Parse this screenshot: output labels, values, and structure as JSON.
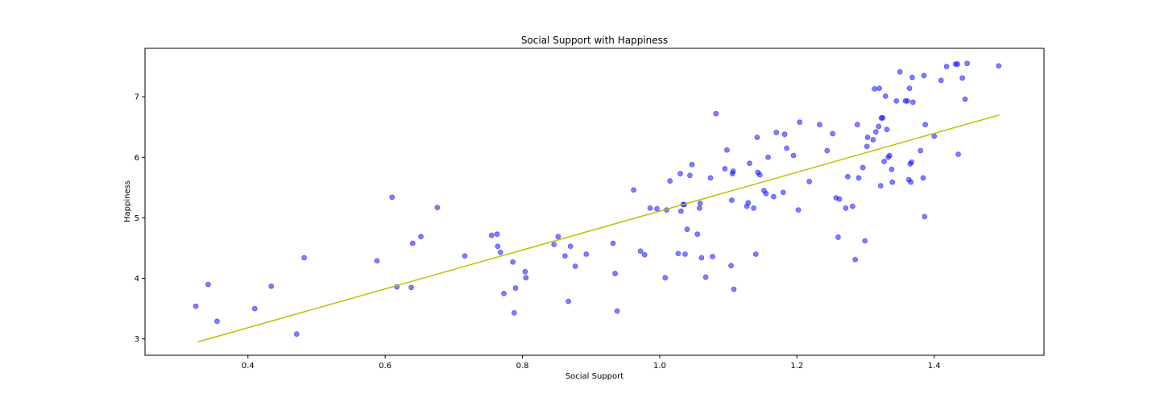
{
  "chart_data": {
    "type": "scatter",
    "title": "Social Support with Happiness",
    "xlabel": "Social Support",
    "ylabel": "Happiness",
    "xlim": [
      0.25,
      1.56
    ],
    "ylim": [
      2.73,
      7.8
    ],
    "xticks": [
      0.4,
      0.6,
      0.8,
      1.0,
      1.2,
      1.4
    ],
    "xtick_labels": [
      "0.4",
      "0.6",
      "0.8",
      "1.0",
      "1.2",
      "1.4"
    ],
    "yticks": [
      3,
      4,
      5,
      6,
      7
    ],
    "ytick_labels": [
      "3",
      "4",
      "5",
      "6",
      "7"
    ],
    "grid": false,
    "point_color": "#0000ff",
    "line_color": "#bfbf00",
    "fit_line": {
      "x": [
        0.327,
        1.495
      ],
      "y": [
        2.95,
        6.7
      ]
    },
    "points": [
      [
        0.324,
        3.54
      ],
      [
        0.342,
        3.9
      ],
      [
        0.355,
        3.29
      ],
      [
        0.41,
        3.5
      ],
      [
        0.434,
        3.87
      ],
      [
        0.471,
        3.08
      ],
      [
        0.482,
        4.34
      ],
      [
        0.588,
        4.29
      ],
      [
        0.61,
        5.34
      ],
      [
        0.617,
        3.86
      ],
      [
        0.638,
        3.85
      ],
      [
        0.64,
        4.58
      ],
      [
        0.652,
        4.69
      ],
      [
        0.676,
        5.17
      ],
      [
        0.716,
        4.37
      ],
      [
        0.755,
        4.71
      ],
      [
        0.763,
        4.73
      ],
      [
        0.764,
        4.53
      ],
      [
        0.768,
        4.43
      ],
      [
        0.773,
        3.75
      ],
      [
        0.786,
        4.27
      ],
      [
        0.788,
        3.43
      ],
      [
        0.79,
        3.84
      ],
      [
        0.804,
        4.11
      ],
      [
        0.805,
        4.01
      ],
      [
        0.846,
        4.56
      ],
      [
        0.852,
        4.69
      ],
      [
        0.862,
        4.37
      ],
      [
        0.867,
        3.62
      ],
      [
        0.87,
        4.53
      ],
      [
        0.877,
        4.2
      ],
      [
        0.893,
        4.4
      ],
      [
        0.932,
        4.58
      ],
      [
        0.935,
        4.08
      ],
      [
        0.938,
        3.46
      ],
      [
        0.962,
        5.46
      ],
      [
        0.972,
        4.45
      ],
      [
        0.978,
        4.39
      ],
      [
        0.986,
        5.16
      ],
      [
        0.996,
        5.15
      ],
      [
        1.008,
        4.01
      ],
      [
        1.01,
        5.13
      ],
      [
        1.015,
        5.61
      ],
      [
        1.027,
        4.41
      ],
      [
        1.03,
        5.73
      ],
      [
        1.031,
        5.11
      ],
      [
        1.034,
        5.22
      ],
      [
        1.036,
        5.22
      ],
      [
        1.037,
        4.4
      ],
      [
        1.04,
        4.81
      ],
      [
        1.044,
        5.7
      ],
      [
        1.047,
        5.88
      ],
      [
        1.055,
        4.73
      ],
      [
        1.058,
        5.16
      ],
      [
        1.059,
        5.24
      ],
      [
        1.061,
        4.34
      ],
      [
        1.067,
        4.02
      ],
      [
        1.074,
        5.66
      ],
      [
        1.077,
        4.36
      ],
      [
        1.082,
        6.72
      ],
      [
        1.095,
        5.81
      ],
      [
        1.098,
        6.12
      ],
      [
        1.104,
        4.21
      ],
      [
        1.105,
        5.29
      ],
      [
        1.106,
        5.73
      ],
      [
        1.107,
        5.77
      ],
      [
        1.108,
        3.82
      ],
      [
        1.127,
        5.19
      ],
      [
        1.129,
        5.25
      ],
      [
        1.131,
        5.9
      ],
      [
        1.137,
        5.16
      ],
      [
        1.14,
        4.4
      ],
      [
        1.142,
        6.33
      ],
      [
        1.143,
        5.75
      ],
      [
        1.146,
        5.71
      ],
      [
        1.152,
        5.45
      ],
      [
        1.155,
        5.4
      ],
      [
        1.158,
        6.0
      ],
      [
        1.166,
        5.35
      ],
      [
        1.17,
        6.41
      ],
      [
        1.18,
        5.42
      ],
      [
        1.182,
        6.38
      ],
      [
        1.185,
        6.15
      ],
      [
        1.195,
        6.03
      ],
      [
        1.202,
        5.13
      ],
      [
        1.204,
        6.58
      ],
      [
        1.218,
        5.6
      ],
      [
        1.233,
        6.54
      ],
      [
        1.244,
        6.11
      ],
      [
        1.252,
        6.39
      ],
      [
        1.257,
        5.33
      ],
      [
        1.26,
        4.68
      ],
      [
        1.262,
        5.31
      ],
      [
        1.271,
        5.16
      ],
      [
        1.274,
        5.68
      ],
      [
        1.281,
        5.19
      ],
      [
        1.285,
        4.31
      ],
      [
        1.288,
        6.54
      ],
      [
        1.29,
        5.66
      ],
      [
        1.296,
        5.83
      ],
      [
        1.299,
        4.62
      ],
      [
        1.302,
        6.18
      ],
      [
        1.303,
        6.33
      ],
      [
        1.311,
        6.29
      ],
      [
        1.313,
        7.13
      ],
      [
        1.315,
        6.42
      ],
      [
        1.319,
        6.51
      ],
      [
        1.32,
        7.14
      ],
      [
        1.322,
        5.53
      ],
      [
        1.323,
        6.65
      ],
      [
        1.325,
        6.65
      ],
      [
        1.327,
        5.93
      ],
      [
        1.329,
        7.01
      ],
      [
        1.331,
        6.46
      ],
      [
        1.333,
        6.0
      ],
      [
        1.335,
        6.03
      ],
      [
        1.338,
        5.8
      ],
      [
        1.339,
        5.59
      ],
      [
        1.345,
        6.93
      ],
      [
        1.35,
        7.41
      ],
      [
        1.358,
        6.93
      ],
      [
        1.361,
        6.93
      ],
      [
        1.363,
        5.63
      ],
      [
        1.364,
        7.14
      ],
      [
        1.365,
        5.89
      ],
      [
        1.366,
        5.59
      ],
      [
        1.367,
        5.92
      ],
      [
        1.368,
        7.32
      ],
      [
        1.369,
        6.91
      ],
      [
        1.38,
        6.11
      ],
      [
        1.384,
        5.66
      ],
      [
        1.385,
        7.35
      ],
      [
        1.386,
        5.02
      ],
      [
        1.387,
        6.54
      ],
      [
        1.4,
        6.35
      ],
      [
        1.41,
        7.27
      ],
      [
        1.418,
        7.5
      ],
      [
        1.431,
        7.54
      ],
      [
        1.434,
        7.54
      ],
      [
        1.435,
        6.05
      ],
      [
        1.441,
        7.31
      ],
      [
        1.445,
        6.96
      ],
      [
        1.448,
        7.55
      ],
      [
        1.494,
        7.51
      ]
    ]
  }
}
